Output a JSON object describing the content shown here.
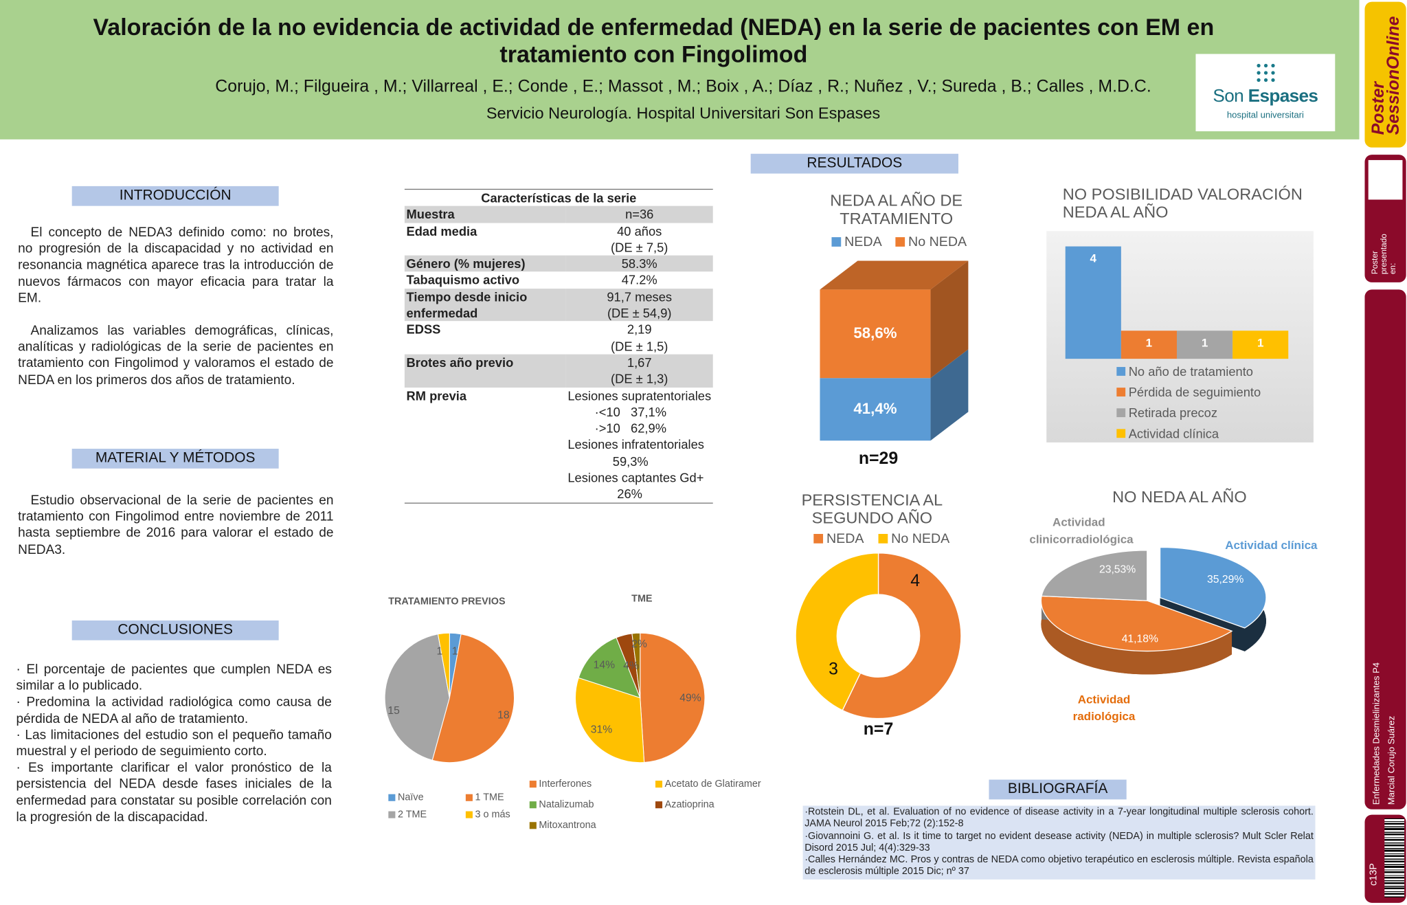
{
  "header": {
    "title": "Valoración de la no evidencia de actividad de enfermedad (NEDA) en la serie de pacientes con EM en tratamiento con Fingolimod",
    "authors": "Corujo, M.; Filgueira , M.; Villarreal , E.; Conde , E.; Massot , M.; Boix , A.; Díaz , R.; Nuñez , V.; Sureda , B.; Calles , M.D.C.",
    "affiliation": "Servicio Neurología. Hospital Universitari Son Espases",
    "logo": {
      "name_1": "Son",
      "name_2": "Espases",
      "subtitle": "hospital universitari"
    }
  },
  "sidebar": {
    "brand_1": "Poster",
    "brand_2": "SessionOnline",
    "presented": "Poster presentado en:",
    "session": "Enfermedades Desmielinizantes P4",
    "author": "Marcial Corujo Suárez",
    "code": "c13P"
  },
  "introduccion": {
    "heading": "INTRODUCCIÓN",
    "paragraphs": [
      "El concepto de NEDA3 definido como: no brotes, no progresión de la discapacidad y no actividad en resonancia magnética aparece tras la introducción de nuevos fármacos con mayor eficacia para tratar la EM.",
      "Analizamos las variables demográficas, clínicas, analíticas y radiológicas de la serie de pacientes en tratamiento con Fingolimod y valoramos el estado de NEDA en los primeros dos años de tratamiento."
    ]
  },
  "metodos": {
    "heading": "MATERIAL Y MÉTODOS",
    "paragraph": "Estudio observacional de la serie de pacientes en tratamiento con Fingolimod entre noviembre de 2011 hasta septiembre de 2016 para valorar el estado de NEDA3."
  },
  "conclusiones": {
    "heading": "CONCLUSIONES",
    "items": [
      "· El porcentaje de pacientes que cumplen NEDA es similar a lo publicado.",
      "· Predomina la actividad radiológica como causa de pérdida de NEDA al año de tratamiento.",
      "· Las limitaciones del estudio son el pequeño tamaño muestral y el periodo de seguimiento corto.",
      "· Es importante clarificar el valor pronóstico de la persistencia del NEDA desde fases iniciales de la enfermedad para constatar su posible correlación con la progresión de la discapacidad."
    ]
  },
  "table": {
    "title": "Características de la serie",
    "rows": [
      {
        "label": "Muestra",
        "value": [
          "n=36"
        ]
      },
      {
        "label": "Edad media",
        "value": [
          "40 años",
          "(DE ± 7,5)"
        ]
      },
      {
        "label": "Género (% mujeres)",
        "value": [
          "58.3%"
        ]
      },
      {
        "label": "Tabaquismo activo",
        "value": [
          "47.2%"
        ]
      },
      {
        "label": "Tiempo desde inicio enfermedad",
        "value": [
          "91,7 meses",
          "(DE ± 54,9)"
        ]
      },
      {
        "label": "EDSS",
        "value": [
          "2,19",
          "(DE ± 1,5)"
        ]
      },
      {
        "label": "Brotes año previo",
        "value": [
          "1,67",
          "(DE ± 1,3)"
        ]
      },
      {
        "label": "RM previa",
        "value": [
          "Lesiones supratentoriales",
          "·<10   37,1%",
          "·>10   62,9%",
          "Lesiones infratentoriales",
          "59,3%",
          "Lesiones captantes Gd+",
          "26%"
        ]
      }
    ]
  },
  "resultados": {
    "heading": "RESULTADOS"
  },
  "bibliografia": {
    "heading": "BIBLIOGRAFÍA",
    "items": [
      "·Rotstein DL, et al. Evaluation of no evidence of disease activity in a 7-year longitudinal multiple sclerosis  cohort. JAMA Neurol 2015 Feb;72 (2):152-8",
      "·Giovannoini G. et al. Is it time to target no evident desease activity (NEDA) in multiple sclerosis? Mult Scler Relat Disord 2015 Jul; 4(4):329-33",
      "·Calles Hernández MC. Pros y contras de NEDA como objetivo terapéutico en esclerosis múltiple. Revista española de esclerosis múltiple 2015 Dic; nº 37"
    ]
  },
  "chart_data": [
    {
      "type": "pie",
      "title": "TRATAMIENTO PREVIOS",
      "categories": [
        "Naïve",
        "1 TME",
        "2 TME",
        "3 o más"
      ],
      "values": [
        1,
        18,
        15,
        1
      ],
      "colors": [
        "#5b9bd5",
        "#ed7d31",
        "#a5a5a5",
        "#ffc000"
      ]
    },
    {
      "type": "pie",
      "title": "TME",
      "categories": [
        "Interferones",
        "Acetato de Glatiramer",
        "Natalizumab",
        "Azatioprina",
        "Mitoxantrona"
      ],
      "values": [
        49,
        31,
        14,
        4,
        2
      ],
      "value_labels": [
        "49%",
        "31%",
        "14%",
        "4%",
        "2%"
      ],
      "colors": [
        "#ed7d31",
        "#ffc000",
        "#70ad47",
        "#9e480e",
        "#997300"
      ]
    },
    {
      "type": "stacked-bar",
      "title": "NEDA AL AÑO DE TRATAMIENTO",
      "series": [
        {
          "name": "NEDA",
          "color": "#5b9bd5",
          "values": [
            41.4
          ],
          "value_labels": [
            "41,4%"
          ]
        },
        {
          "name": "No NEDA",
          "color": "#ed7d31",
          "values": [
            58.6
          ],
          "value_labels": [
            "58,6%"
          ]
        }
      ],
      "annotation": "n=29"
    },
    {
      "type": "bar",
      "title": "NO POSIBILIDAD VALORACIÓN NEDA AL AÑO",
      "categories": [
        "No año de tratamiento",
        "Pérdida de seguimiento",
        "Retirada precoz",
        "Actividad clínica"
      ],
      "values": [
        4,
        1,
        1,
        1
      ],
      "colors": [
        "#5b9bd5",
        "#ed7d31",
        "#a5a5a5",
        "#ffc000"
      ]
    },
    {
      "type": "doughnut",
      "title": "PERSISTENCIA AL SEGUNDO AÑO",
      "categories": [
        "NEDA",
        "No NEDA"
      ],
      "values": [
        4,
        3
      ],
      "colors": [
        "#ed7d31",
        "#ffc000"
      ],
      "annotation": "n=7"
    },
    {
      "type": "pie3d",
      "title": "NO NEDA AL AÑO",
      "categories": [
        "Actividad clínica",
        "Actividad radiológica",
        "Actividad clinicorradiológica"
      ],
      "values": [
        35.29,
        41.18,
        23.53
      ],
      "value_labels": [
        "35,29%",
        "41,18%",
        "23,53%"
      ],
      "colors": [
        "#5b9bd5",
        "#ed7d31",
        "#a5a5a5"
      ]
    }
  ]
}
